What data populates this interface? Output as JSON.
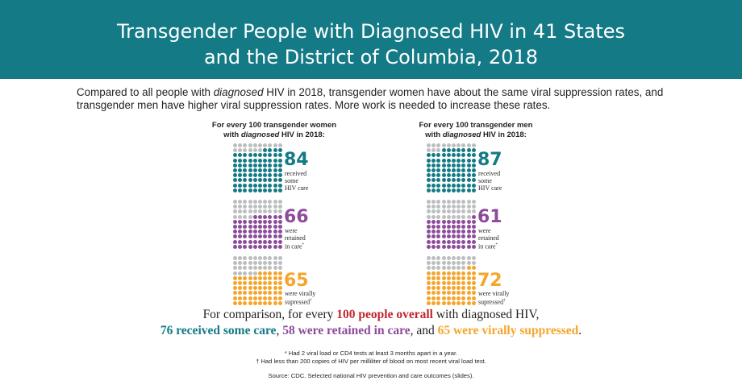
{
  "header": {
    "title_line1": "Transgender People with Diagnosed HIV in 41 States",
    "title_line2": "and the District of Columbia, 2018"
  },
  "intro": {
    "part1": "Compared to all people with ",
    "emphasis": "diagnosed",
    "part2": " HIV in 2018, transgender women have about the same viral suppression rates, and transgender men have higher viral suppression rates. More work is needed to increase these rates."
  },
  "colors": {
    "header_bg": "#137a86",
    "care": "#137a86",
    "retained": "#8e4b9c",
    "suppressed": "#f5a52c",
    "empty": "#bcbec0",
    "overall": "#c0272d"
  },
  "chart_data": [
    {
      "type": "waffle",
      "title_line1": "For every 100 transgender women",
      "title_pre": "with ",
      "title_emph": "diagnosed",
      "title_post": " HIV in 2018:",
      "categories": [
        "received some HIV care",
        "were retained in care*",
        "were virally supressed†"
      ],
      "values": [
        84,
        66,
        65
      ],
      "total": 100,
      "items": [
        {
          "value": "84",
          "line1": "received",
          "line2": "some",
          "line3": "HIV care",
          "mark": ""
        },
        {
          "value": "66",
          "line1": "were",
          "line2": "retained",
          "line3": "in care",
          "mark": "*"
        },
        {
          "value": "65",
          "line1": "were virally",
          "line2": "supressed",
          "line3": "",
          "mark": "†"
        }
      ]
    },
    {
      "type": "waffle",
      "title_line1": "For every 100 transgender men",
      "title_pre": "with ",
      "title_emph": "diagnosed",
      "title_post": " HIV in 2018:",
      "categories": [
        "received some HIV care",
        "were retained in care*",
        "were virally supressed†"
      ],
      "values": [
        87,
        61,
        72
      ],
      "total": 100,
      "items": [
        {
          "value": "87",
          "line1": "received",
          "line2": "some",
          "line3": "HIV care",
          "mark": ""
        },
        {
          "value": "61",
          "line1": "were",
          "line2": "retained",
          "line3": "in care",
          "mark": "*"
        },
        {
          "value": "72",
          "line1": "were virally",
          "line2": "supressed",
          "line3": "",
          "mark": "†"
        }
      ]
    }
  ],
  "comparison": {
    "line1_pre": "For comparison, for every ",
    "line1_emph": "100 people overall",
    "line1_post": " with diagnosed HIV,",
    "care": "76 received some care",
    "sep1": ", ",
    "retained": "58 were retained in care",
    "sep2": ", and ",
    "suppressed": "65 were virally suppressed",
    "end": "."
  },
  "footnotes": {
    "star": "* Had 2 viral load or CD4 tests at least 3 months apart in a year.",
    "dagger": "† Had less than 200 copies of HIV per milliliter of blood on most recent viral load test.",
    "source": "Source: CDC. Selected national HIV prevention and care outcomes (slides)."
  }
}
